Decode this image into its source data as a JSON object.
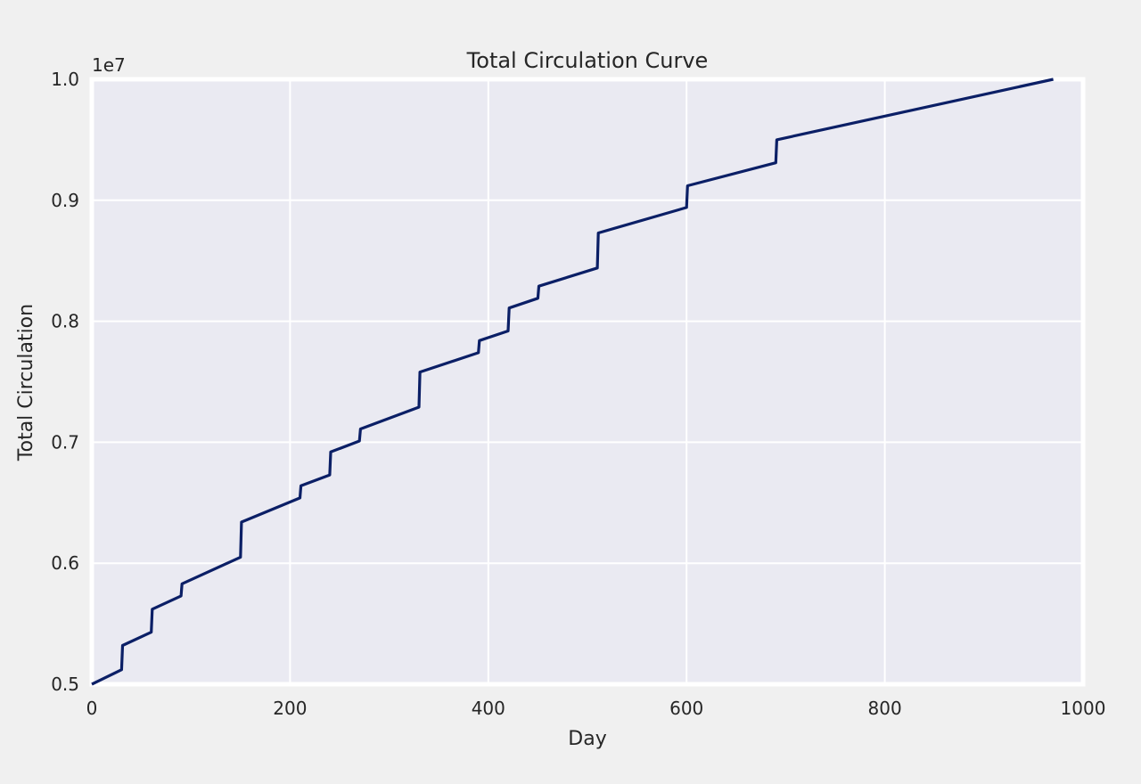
{
  "chart_data": {
    "type": "line",
    "title": "Total Circulation Curve",
    "xlabel": "Day",
    "ylabel": "Total Circulation",
    "y_offset_label": "1e7",
    "xlim": [
      0,
      1000
    ],
    "ylim": [
      0.5,
      1.0
    ],
    "xticks": [
      0,
      200,
      400,
      600,
      800,
      1000
    ],
    "xtick_labels": [
      "0",
      "200",
      "400",
      "600",
      "800",
      "1000"
    ],
    "yticks": [
      0.5,
      0.6,
      0.7,
      0.8,
      0.9,
      1.0
    ],
    "ytick_labels": [
      "0.5",
      "0.6",
      "0.7",
      "0.8",
      "0.9",
      "1.0"
    ],
    "grid": true,
    "series": [
      {
        "color": "#0b1f66",
        "x": [
          0,
          30,
          31,
          60,
          61,
          90,
          91,
          150,
          151,
          210,
          211,
          240,
          241,
          270,
          271,
          330,
          331,
          390,
          391,
          420,
          421,
          450,
          451,
          510,
          511,
          600,
          601,
          690,
          691,
          970
        ],
        "y": [
          0.5,
          0.512,
          0.532,
          0.543,
          0.562,
          0.573,
          0.583,
          0.605,
          0.634,
          0.654,
          0.664,
          0.673,
          0.692,
          0.701,
          0.711,
          0.729,
          0.758,
          0.774,
          0.784,
          0.792,
          0.811,
          0.819,
          0.829,
          0.844,
          0.873,
          0.894,
          0.912,
          0.931,
          0.95,
          1.0
        ]
      }
    ]
  }
}
